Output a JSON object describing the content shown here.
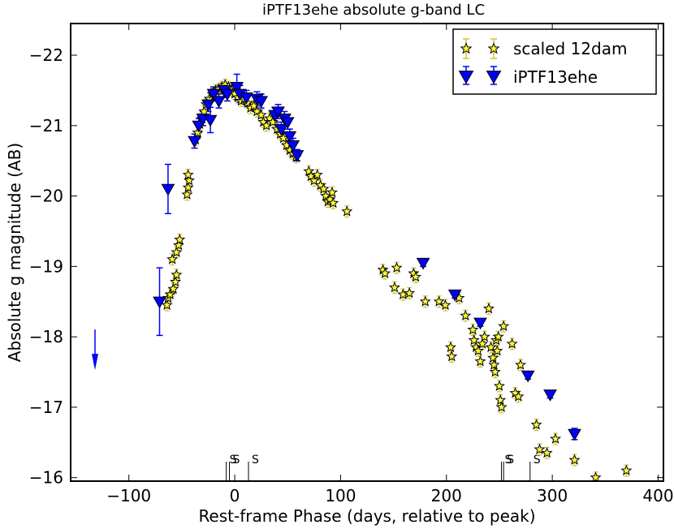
{
  "chart_data": {
    "type": "scatter",
    "title": "iPTF13ehe absolute g-band LC",
    "xlabel": "Rest-frame Phase (days, relative to peak)",
    "ylabel": "Absolute g magnitude (AB)",
    "xlim": [
      -155,
      405
    ],
    "ylim": [
      -15.95,
      -22.45
    ],
    "y_inverted": true,
    "grid": false,
    "legend_position": "top-right",
    "x_ticks": [
      -100,
      0,
      100,
      200,
      300,
      400
    ],
    "y_ticks": [
      -16,
      -17,
      -18,
      -19,
      -20,
      -21,
      -22
    ],
    "x_tick_labels": [
      "−100",
      "0",
      "100",
      "200",
      "300",
      "400"
    ],
    "y_tick_labels": [
      "−16",
      "−17",
      "−18",
      "−19",
      "−20",
      "−21",
      "−22"
    ],
    "spectrum_marker_label": "S",
    "spectrum_epochs": [
      -8,
      -5,
      13,
      252,
      254,
      279
    ],
    "series": [
      {
        "name": "scaled 12dam",
        "marker": "star",
        "color": "#fffb33",
        "errcolor": "#c8c832",
        "points": [
          {
            "x": -64,
            "y": -18.45,
            "e": 0.08
          },
          {
            "x": -63,
            "y": -18.55,
            "e": 0.08
          },
          {
            "x": -61,
            "y": -18.6,
            "e": 0.08
          },
          {
            "x": -58,
            "y": -18.68,
            "e": 0.08
          },
          {
            "x": -56,
            "y": -18.78,
            "e": 0.08
          },
          {
            "x": -55,
            "y": -18.88,
            "e": 0.08
          },
          {
            "x": -59,
            "y": -19.1,
            "e": 0.08
          },
          {
            "x": -55,
            "y": -19.2,
            "e": 0.08
          },
          {
            "x": -53,
            "y": -19.3,
            "e": 0.08
          },
          {
            "x": -52,
            "y": -19.38,
            "e": 0.08
          },
          {
            "x": -45,
            "y": -20.02,
            "e": 0.08
          },
          {
            "x": -44,
            "y": -20.12,
            "e": 0.08
          },
          {
            "x": -43,
            "y": -20.22,
            "e": 0.08
          },
          {
            "x": -44,
            "y": -20.3,
            "e": 0.08
          },
          {
            "x": -37,
            "y": -20.8,
            "e": 0.08
          },
          {
            "x": -35,
            "y": -20.9,
            "e": 0.08
          },
          {
            "x": -33,
            "y": -21.02,
            "e": 0.08
          },
          {
            "x": -31,
            "y": -21.1,
            "e": 0.08
          },
          {
            "x": -29,
            "y": -21.2,
            "e": 0.08
          },
          {
            "x": -27,
            "y": -21.3,
            "e": 0.08
          },
          {
            "x": -24,
            "y": -21.38,
            "e": 0.08
          },
          {
            "x": -21,
            "y": -21.45,
            "e": 0.08
          },
          {
            "x": -18,
            "y": -21.5,
            "e": 0.08
          },
          {
            "x": -15,
            "y": -21.52,
            "e": 0.08
          },
          {
            "x": -12,
            "y": -21.55,
            "e": 0.08
          },
          {
            "x": -9,
            "y": -21.58,
            "e": 0.08
          },
          {
            "x": -6,
            "y": -21.55,
            "e": 0.08
          },
          {
            "x": -3,
            "y": -21.5,
            "e": 0.08
          },
          {
            "x": 0,
            "y": -21.45,
            "e": 0.08
          },
          {
            "x": 3,
            "y": -21.4,
            "e": 0.08
          },
          {
            "x": 6,
            "y": -21.35,
            "e": 0.08
          },
          {
            "x": 9,
            "y": -21.38,
            "e": 0.08
          },
          {
            "x": 12,
            "y": -21.32,
            "e": 0.08
          },
          {
            "x": 15,
            "y": -21.25,
            "e": 0.08
          },
          {
            "x": 18,
            "y": -21.28,
            "e": 0.08
          },
          {
            "x": 21,
            "y": -21.2,
            "e": 0.08
          },
          {
            "x": 25,
            "y": -21.15,
            "e": 0.08
          },
          {
            "x": 27,
            "y": -21.05,
            "e": 0.08
          },
          {
            "x": 30,
            "y": -21.0,
            "e": 0.08
          },
          {
            "x": 33,
            "y": -21.1,
            "e": 0.08
          },
          {
            "x": 36,
            "y": -21.05,
            "e": 0.08
          },
          {
            "x": 40,
            "y": -20.95,
            "e": 0.08
          },
          {
            "x": 43,
            "y": -20.88,
            "e": 0.08
          },
          {
            "x": 46,
            "y": -20.82,
            "e": 0.08
          },
          {
            "x": 49,
            "y": -20.72,
            "e": 0.08
          },
          {
            "x": 52,
            "y": -20.65,
            "e": 0.08
          },
          {
            "x": 55,
            "y": -20.6,
            "e": 0.08
          },
          {
            "x": 58,
            "y": -20.55,
            "e": 0.08
          },
          {
            "x": 70,
            "y": -20.35,
            "e": 0.08
          },
          {
            "x": 72,
            "y": -20.28,
            "e": 0.08
          },
          {
            "x": 75,
            "y": -20.22,
            "e": 0.08
          },
          {
            "x": 78,
            "y": -20.3,
            "e": 0.08
          },
          {
            "x": 81,
            "y": -20.15,
            "e": 0.08
          },
          {
            "x": 84,
            "y": -20.1,
            "e": 0.08
          },
          {
            "x": 86,
            "y": -20.0,
            "e": 0.08
          },
          {
            "x": 88,
            "y": -19.92,
            "e": 0.08
          },
          {
            "x": 90,
            "y": -19.95,
            "e": 0.08
          },
          {
            "x": 92,
            "y": -20.05,
            "e": 0.08
          },
          {
            "x": 93,
            "y": -19.9,
            "e": 0.08
          },
          {
            "x": 106,
            "y": -19.78,
            "e": 0.08
          },
          {
            "x": 140,
            "y": -18.95,
            "e": 0.08
          },
          {
            "x": 142,
            "y": -18.9,
            "e": 0.08
          },
          {
            "x": 151,
            "y": -18.7,
            "e": 0.08
          },
          {
            "x": 153,
            "y": -18.98,
            "e": 0.08
          },
          {
            "x": 159,
            "y": -18.6,
            "e": 0.08
          },
          {
            "x": 165,
            "y": -18.62,
            "e": 0.08
          },
          {
            "x": 169,
            "y": -18.9,
            "e": 0.08
          },
          {
            "x": 171,
            "y": -18.85,
            "e": 0.08
          },
          {
            "x": 180,
            "y": -18.5,
            "e": 0.08
          },
          {
            "x": 193,
            "y": -18.5,
            "e": 0.08
          },
          {
            "x": 199,
            "y": -18.45,
            "e": 0.08
          },
          {
            "x": 204,
            "y": -17.85,
            "e": 0.08
          },
          {
            "x": 205,
            "y": -17.72,
            "e": 0.08
          },
          {
            "x": 212,
            "y": -18.55,
            "e": 0.08
          },
          {
            "x": 218,
            "y": -18.3,
            "e": 0.08
          },
          {
            "x": 225,
            "y": -18.1,
            "e": 0.08
          },
          {
            "x": 226,
            "y": -17.95,
            "e": 0.08
          },
          {
            "x": 228,
            "y": -17.85,
            "e": 0.08
          },
          {
            "x": 230,
            "y": -17.8,
            "e": 0.08
          },
          {
            "x": 232,
            "y": -17.65,
            "e": 0.08
          },
          {
            "x": 234,
            "y": -17.9,
            "e": 0.08
          },
          {
            "x": 236,
            "y": -18.0,
            "e": 0.08
          },
          {
            "x": 240,
            "y": -18.4,
            "e": 0.08
          },
          {
            "x": 242,
            "y": -17.85,
            "e": 0.08
          },
          {
            "x": 244,
            "y": -17.7,
            "e": 0.08
          },
          {
            "x": 245,
            "y": -17.6,
            "e": 0.08
          },
          {
            "x": 246,
            "y": -17.5,
            "e": 0.08
          },
          {
            "x": 247,
            "y": -17.95,
            "e": 0.08
          },
          {
            "x": 248,
            "y": -17.8,
            "e": 0.08
          },
          {
            "x": 249,
            "y": -18.0,
            "e": 0.08
          },
          {
            "x": 250,
            "y": -17.3,
            "e": 0.08
          },
          {
            "x": 251,
            "y": -17.1,
            "e": 0.08
          },
          {
            "x": 252,
            "y": -17.0,
            "e": 0.08
          },
          {
            "x": 254,
            "y": -18.15,
            "e": 0.08
          },
          {
            "x": 262,
            "y": -17.9,
            "e": 0.08
          },
          {
            "x": 265,
            "y": -17.2,
            "e": 0.08
          },
          {
            "x": 268,
            "y": -17.15,
            "e": 0.08
          },
          {
            "x": 270,
            "y": -17.6,
            "e": 0.08
          },
          {
            "x": 285,
            "y": -16.75,
            "e": 0.08
          },
          {
            "x": 288,
            "y": -16.4,
            "e": 0.08
          },
          {
            "x": 295,
            "y": -16.35,
            "e": 0.08
          },
          {
            "x": 303,
            "y": -16.55,
            "e": 0.08
          },
          {
            "x": 321,
            "y": -16.25,
            "e": 0.08
          },
          {
            "x": 341,
            "y": -16.0,
            "e": 0.08
          },
          {
            "x": 370,
            "y": -16.1,
            "e": 0.08
          }
        ]
      },
      {
        "name": "iPTF13ehe",
        "marker": "triangle-down",
        "color": "#0000ff",
        "points": [
          {
            "x": -71,
            "y": -18.5,
            "e": 0.48
          },
          {
            "x": -63,
            "y": -20.1,
            "e": 0.35
          },
          {
            "x": -38,
            "y": -20.78,
            "e": 0.1
          },
          {
            "x": -34,
            "y": -21.0,
            "e": 0.1
          },
          {
            "x": -30,
            "y": -21.1,
            "e": 0.1
          },
          {
            "x": -25,
            "y": -21.3,
            "e": 0.1
          },
          {
            "x": -23,
            "y": -21.08,
            "e": 0.18
          },
          {
            "x": -20,
            "y": -21.45,
            "e": 0.1
          },
          {
            "x": -15,
            "y": -21.35,
            "e": 0.1
          },
          {
            "x": -10,
            "y": -21.5,
            "e": 0.1
          },
          {
            "x": -7,
            "y": -21.45,
            "e": 0.1
          },
          {
            "x": 2,
            "y": -21.55,
            "e": 0.18
          },
          {
            "x": 5,
            "y": -21.45,
            "e": 0.12
          },
          {
            "x": 11,
            "y": -21.4,
            "e": 0.1
          },
          {
            "x": 21,
            "y": -21.38,
            "e": 0.1
          },
          {
            "x": 25,
            "y": -21.35,
            "e": 0.1
          },
          {
            "x": 38,
            "y": -21.15,
            "e": 0.1
          },
          {
            "x": 41,
            "y": -21.2,
            "e": 0.1
          },
          {
            "x": 44,
            "y": -20.95,
            "e": 0.1
          },
          {
            "x": 47,
            "y": -21.1,
            "e": 0.1
          },
          {
            "x": 50,
            "y": -21.05,
            "e": 0.1
          },
          {
            "x": 52,
            "y": -20.85,
            "e": 0.1
          },
          {
            "x": 55,
            "y": -20.72,
            "e": 0.1
          },
          {
            "x": 59,
            "y": -20.58,
            "e": 0.08
          },
          {
            "x": 178,
            "y": -19.05,
            "e": 0.05
          },
          {
            "x": 208,
            "y": -18.6,
            "e": 0.05
          },
          {
            "x": 232,
            "y": -18.2,
            "e": 0.05
          },
          {
            "x": 277,
            "y": -17.45,
            "e": 0.05
          },
          {
            "x": 298,
            "y": -17.18,
            "e": 0.05
          },
          {
            "x": 321,
            "y": -16.62,
            "e": 0.08
          }
        ],
        "upper_limits": [
          {
            "x": -132,
            "y": -17.55
          }
        ]
      }
    ]
  }
}
